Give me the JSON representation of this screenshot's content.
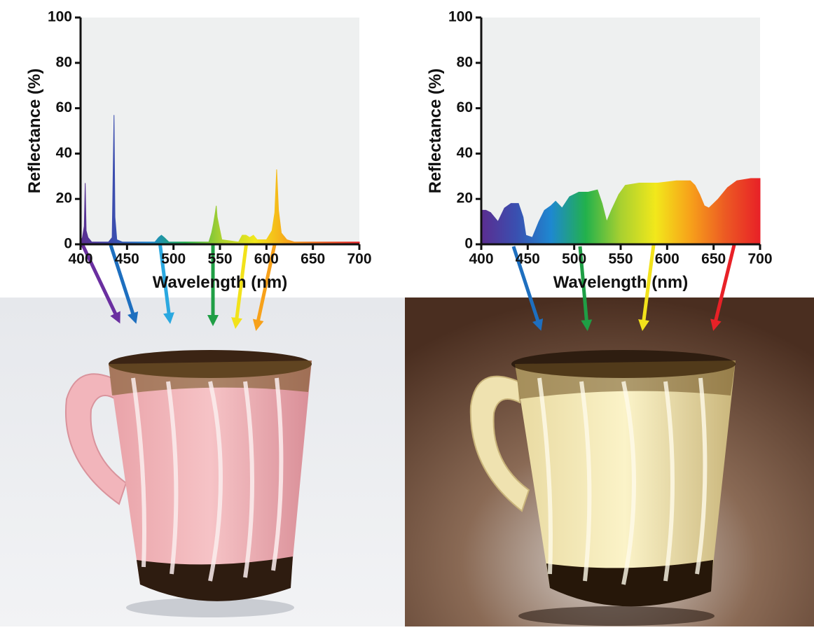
{
  "chart_data": [
    {
      "type": "area",
      "x_label": "Wavelength (nm)",
      "y_label": "Reflectance (%)",
      "x": [
        400,
        402,
        404,
        405,
        406,
        408,
        412,
        430,
        434,
        435,
        436,
        437,
        439,
        445,
        480,
        484,
        487,
        490,
        495,
        538,
        541,
        543,
        545,
        546,
        547,
        549,
        552,
        570,
        574,
        578,
        582,
        586,
        590,
        600,
        606,
        609,
        611,
        613,
        616,
        622,
        630,
        650,
        700
      ],
      "values": [
        1,
        3,
        8,
        27,
        6,
        3,
        1,
        1,
        3,
        30,
        57,
        12,
        2,
        1,
        1,
        3,
        4,
        3,
        1,
        1,
        5,
        9,
        14,
        17,
        12,
        8,
        2,
        1,
        4,
        4,
        3,
        4,
        2,
        2,
        6,
        14,
        33,
        15,
        5,
        2,
        1,
        1,
        1
      ],
      "colors": [
        "#5b2d90",
        "#3a4fb0",
        "#1e88d0",
        "#22b14c",
        "#a8d030",
        "#f2e81b",
        "#f7a11a",
        "#ec5a23",
        "#e82127"
      ],
      "xlim": [
        400,
        700
      ],
      "ylim": [
        0,
        100
      ],
      "xticks": [
        400,
        450,
        500,
        550,
        600,
        650,
        700
      ],
      "yticks": [
        0,
        20,
        40,
        60,
        80,
        100
      ]
    },
    {
      "type": "area",
      "x_label": "Wavelength (nm)",
      "y_label": "Reflectance (%)",
      "x": [
        400,
        405,
        410,
        418,
        425,
        432,
        440,
        445,
        448,
        455,
        462,
        468,
        475,
        480,
        487,
        495,
        505,
        515,
        525,
        530,
        535,
        540,
        548,
        555,
        570,
        590,
        610,
        625,
        630,
        635,
        640,
        645,
        650,
        655,
        665,
        675,
        690,
        700
      ],
      "values": [
        15,
        15,
        14,
        10,
        16,
        18,
        18,
        12,
        4,
        3,
        10,
        15,
        17,
        19,
        16,
        21,
        23,
        23,
        24,
        18,
        10,
        15,
        22,
        26,
        27,
        27,
        28,
        28,
        26,
        22,
        17,
        16,
        18,
        20,
        25,
        28,
        29,
        29
      ],
      "colors": [
        "#5b2d90",
        "#3a4fb0",
        "#1e88d0",
        "#22b14c",
        "#a8d030",
        "#f2e81b",
        "#f7a11a",
        "#ec5a23",
        "#e82127"
      ],
      "xlim": [
        400,
        700
      ],
      "ylim": [
        0,
        100
      ],
      "xticks": [
        400,
        450,
        500,
        550,
        600,
        650,
        700
      ],
      "yticks": [
        0,
        20,
        40,
        60,
        80,
        100
      ]
    }
  ]
}
